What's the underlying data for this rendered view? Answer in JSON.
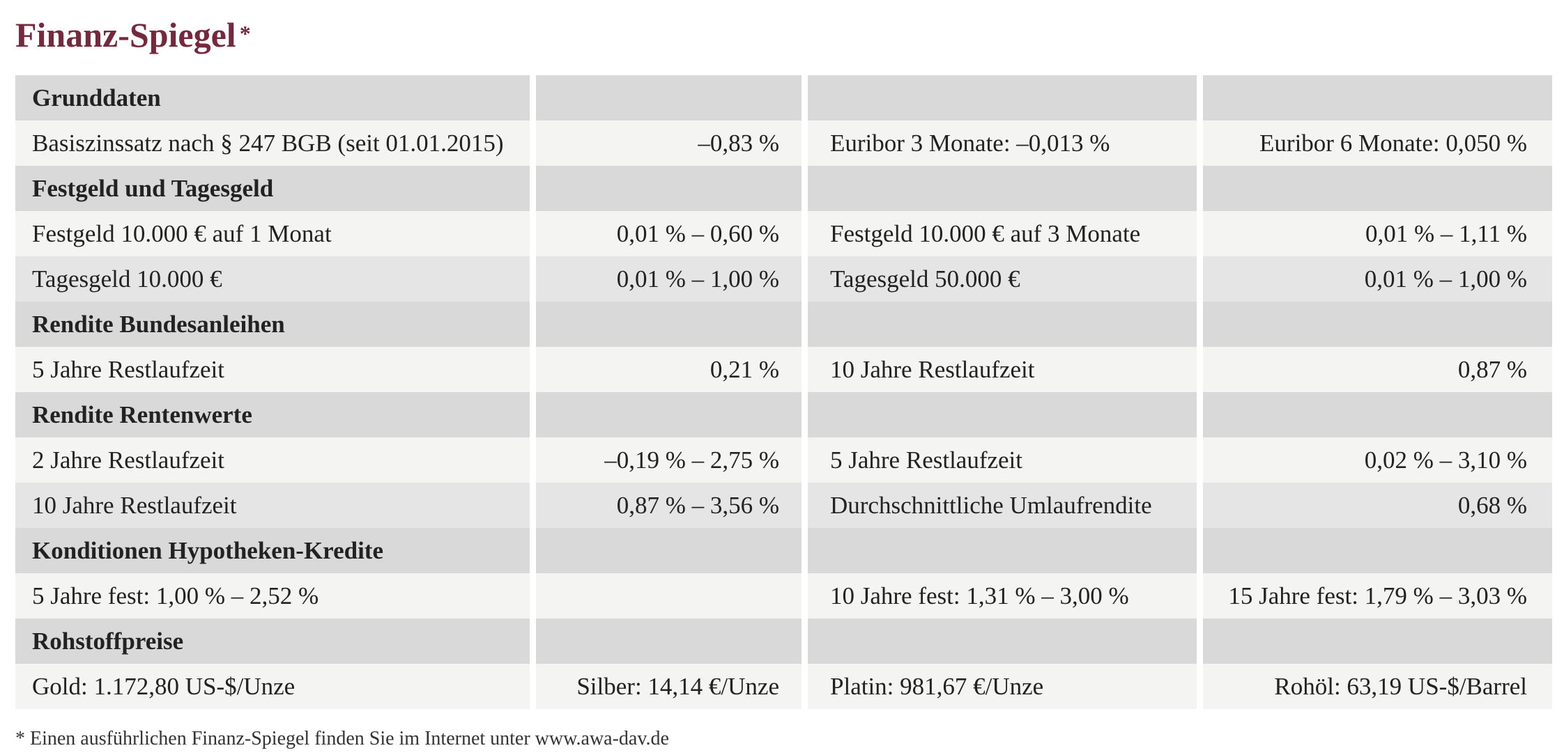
{
  "title": "Finanz-Spiegel",
  "title_marker": "*",
  "colors": {
    "title": "#76293c",
    "header_row": "#d9d9d9",
    "row_light": "#f4f4f2",
    "row_dark": "#e5e5e5",
    "text": "#222222"
  },
  "sections": [
    {
      "heading": "Grunddaten",
      "rows": [
        [
          "Basiszinssatz nach § 247 BGB (seit 01.01.2015)",
          "–0,83 %",
          "Euribor 3 Monate: –0,013 %",
          "Euribor 6 Monate: 0,050 %"
        ]
      ]
    },
    {
      "heading": "Festgeld und Tagesgeld",
      "rows": [
        [
          "Festgeld 10.000 € auf 1 Monat",
          "0,01 % – 0,60 %",
          "Festgeld 10.000 € auf 3 Monate",
          "0,01 % – 1,11 %"
        ],
        [
          "Tagesgeld 10.000 €",
          "0,01 % – 1,00 %",
          "Tagesgeld 50.000 €",
          "0,01 % – 1,00 %"
        ]
      ]
    },
    {
      "heading": "Rendite Bundesanleihen",
      "rows": [
        [
          "5 Jahre Restlaufzeit",
          "0,21 %",
          "10 Jahre Restlaufzeit",
          "0,87 %"
        ]
      ]
    },
    {
      "heading": "Rendite Rentenwerte",
      "rows": [
        [
          "2 Jahre Restlaufzeit",
          "–0,19 % – 2,75 %",
          "5 Jahre Restlaufzeit",
          "0,02 % – 3,10 %"
        ],
        [
          "10 Jahre Restlaufzeit",
          "0,87 % – 3,56 %",
          "Durchschnittliche Umlaufrendite",
          "0,68 %"
        ]
      ]
    },
    {
      "heading": "Konditionen Hypotheken-Kredite",
      "rows": [
        [
          "5 Jahre fest: 1,00 % – 2,52 %",
          "",
          "10 Jahre fest: 1,31 % – 3,00 %",
          "15 Jahre fest: 1,79 % – 3,03 %"
        ]
      ]
    },
    {
      "heading": "Rohstoffpreise",
      "rows": [
        [
          "Gold: 1.172,80 US-$/Unze",
          "Silber: 14,14 €/Unze",
          "Platin: 981,67 €/Unze",
          "Rohöl: 63,19 US-$/Barrel"
        ]
      ]
    }
  ],
  "footnote": "* Einen ausführlichen Finanz-Spiegel finden Sie im Internet unter www.awa-dav.de"
}
